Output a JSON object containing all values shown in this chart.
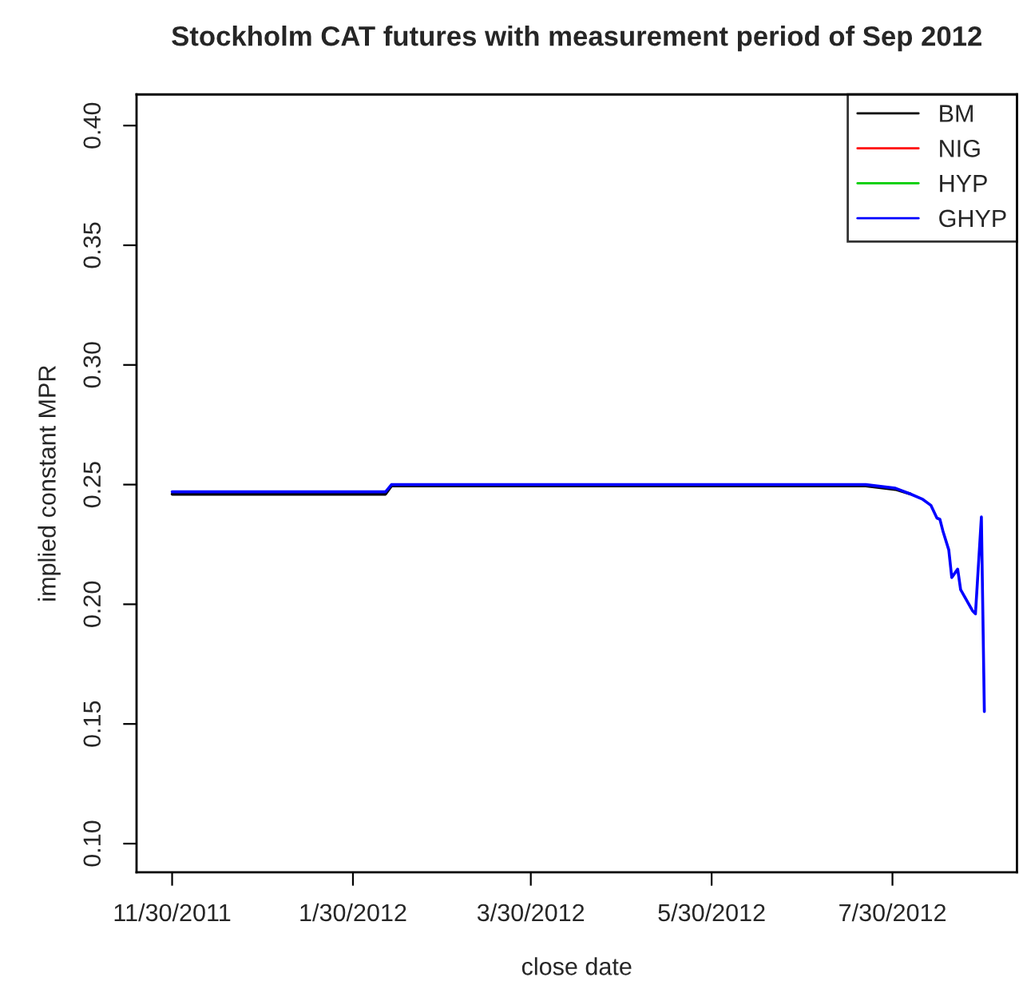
{
  "chart_data": {
    "type": "line",
    "title": "Stockholm CAT futures with measurement period of Sep 2012",
    "xlabel": "close date",
    "ylabel": "implied constant MPR",
    "x": [
      "2011-11-30",
      "2012-02-10",
      "2012-02-12",
      "2012-07-21",
      "2012-07-31",
      "2012-08-05",
      "2012-08-09",
      "2012-08-12",
      "2012-08-14",
      "2012-08-15",
      "2012-08-16",
      "2012-08-18",
      "2012-08-19",
      "2012-08-21",
      "2012-08-22",
      "2012-08-26",
      "2012-08-27",
      "2012-08-29",
      "2012-08-30"
    ],
    "series": [
      {
        "name": "BM",
        "color": "#000000",
        "values": [
          0.246,
          0.246,
          0.2495,
          0.2495,
          0.248,
          0.2461,
          null,
          null,
          null,
          null,
          null,
          null,
          null,
          null,
          null,
          null,
          null,
          null,
          null
        ]
      },
      {
        "name": "NIG",
        "color": "#ff0000",
        "values": [
          null,
          null,
          null,
          null,
          null,
          null,
          null,
          null,
          null,
          null,
          null,
          null,
          null,
          null,
          null,
          null,
          null,
          null,
          null
        ]
      },
      {
        "name": "HYP",
        "color": "#00cd00",
        "values": [
          null,
          null,
          null,
          null,
          null,
          null,
          null,
          null,
          null,
          null,
          null,
          null,
          null,
          null,
          null,
          null,
          null,
          null,
          null
        ]
      },
      {
        "name": "GHYP",
        "color": "#0000ff",
        "values": [
          0.247,
          0.247,
          0.25,
          0.25,
          0.2485,
          0.2461,
          0.244,
          0.2413,
          0.236,
          0.2355,
          0.2307,
          0.2227,
          0.2112,
          0.2147,
          0.2061,
          0.1973,
          0.196,
          0.2365,
          0.1552
        ]
      }
    ],
    "xlim": [
      "2011-11-18",
      "2012-09-10"
    ],
    "xticks": [
      {
        "value": "2011-11-30",
        "label": "11/30/2011"
      },
      {
        "value": "2012-01-30",
        "label": "1/30/2012"
      },
      {
        "value": "2012-03-30",
        "label": "3/30/2012"
      },
      {
        "value": "2012-05-30",
        "label": "5/30/2012"
      },
      {
        "value": "2012-07-30",
        "label": "7/30/2012"
      }
    ],
    "ylim": [
      0.088,
      0.413
    ],
    "yticks": [
      {
        "value": 0.1,
        "label": "0.10"
      },
      {
        "value": 0.15,
        "label": "0.15"
      },
      {
        "value": 0.2,
        "label": "0.20"
      },
      {
        "value": 0.25,
        "label": "0.25"
      },
      {
        "value": 0.3,
        "label": "0.30"
      },
      {
        "value": 0.35,
        "label": "0.35"
      },
      {
        "value": 0.4,
        "label": "0.40"
      }
    ],
    "grid": false,
    "legend": "top right",
    "marker": "none",
    "line_style": "solid"
  }
}
